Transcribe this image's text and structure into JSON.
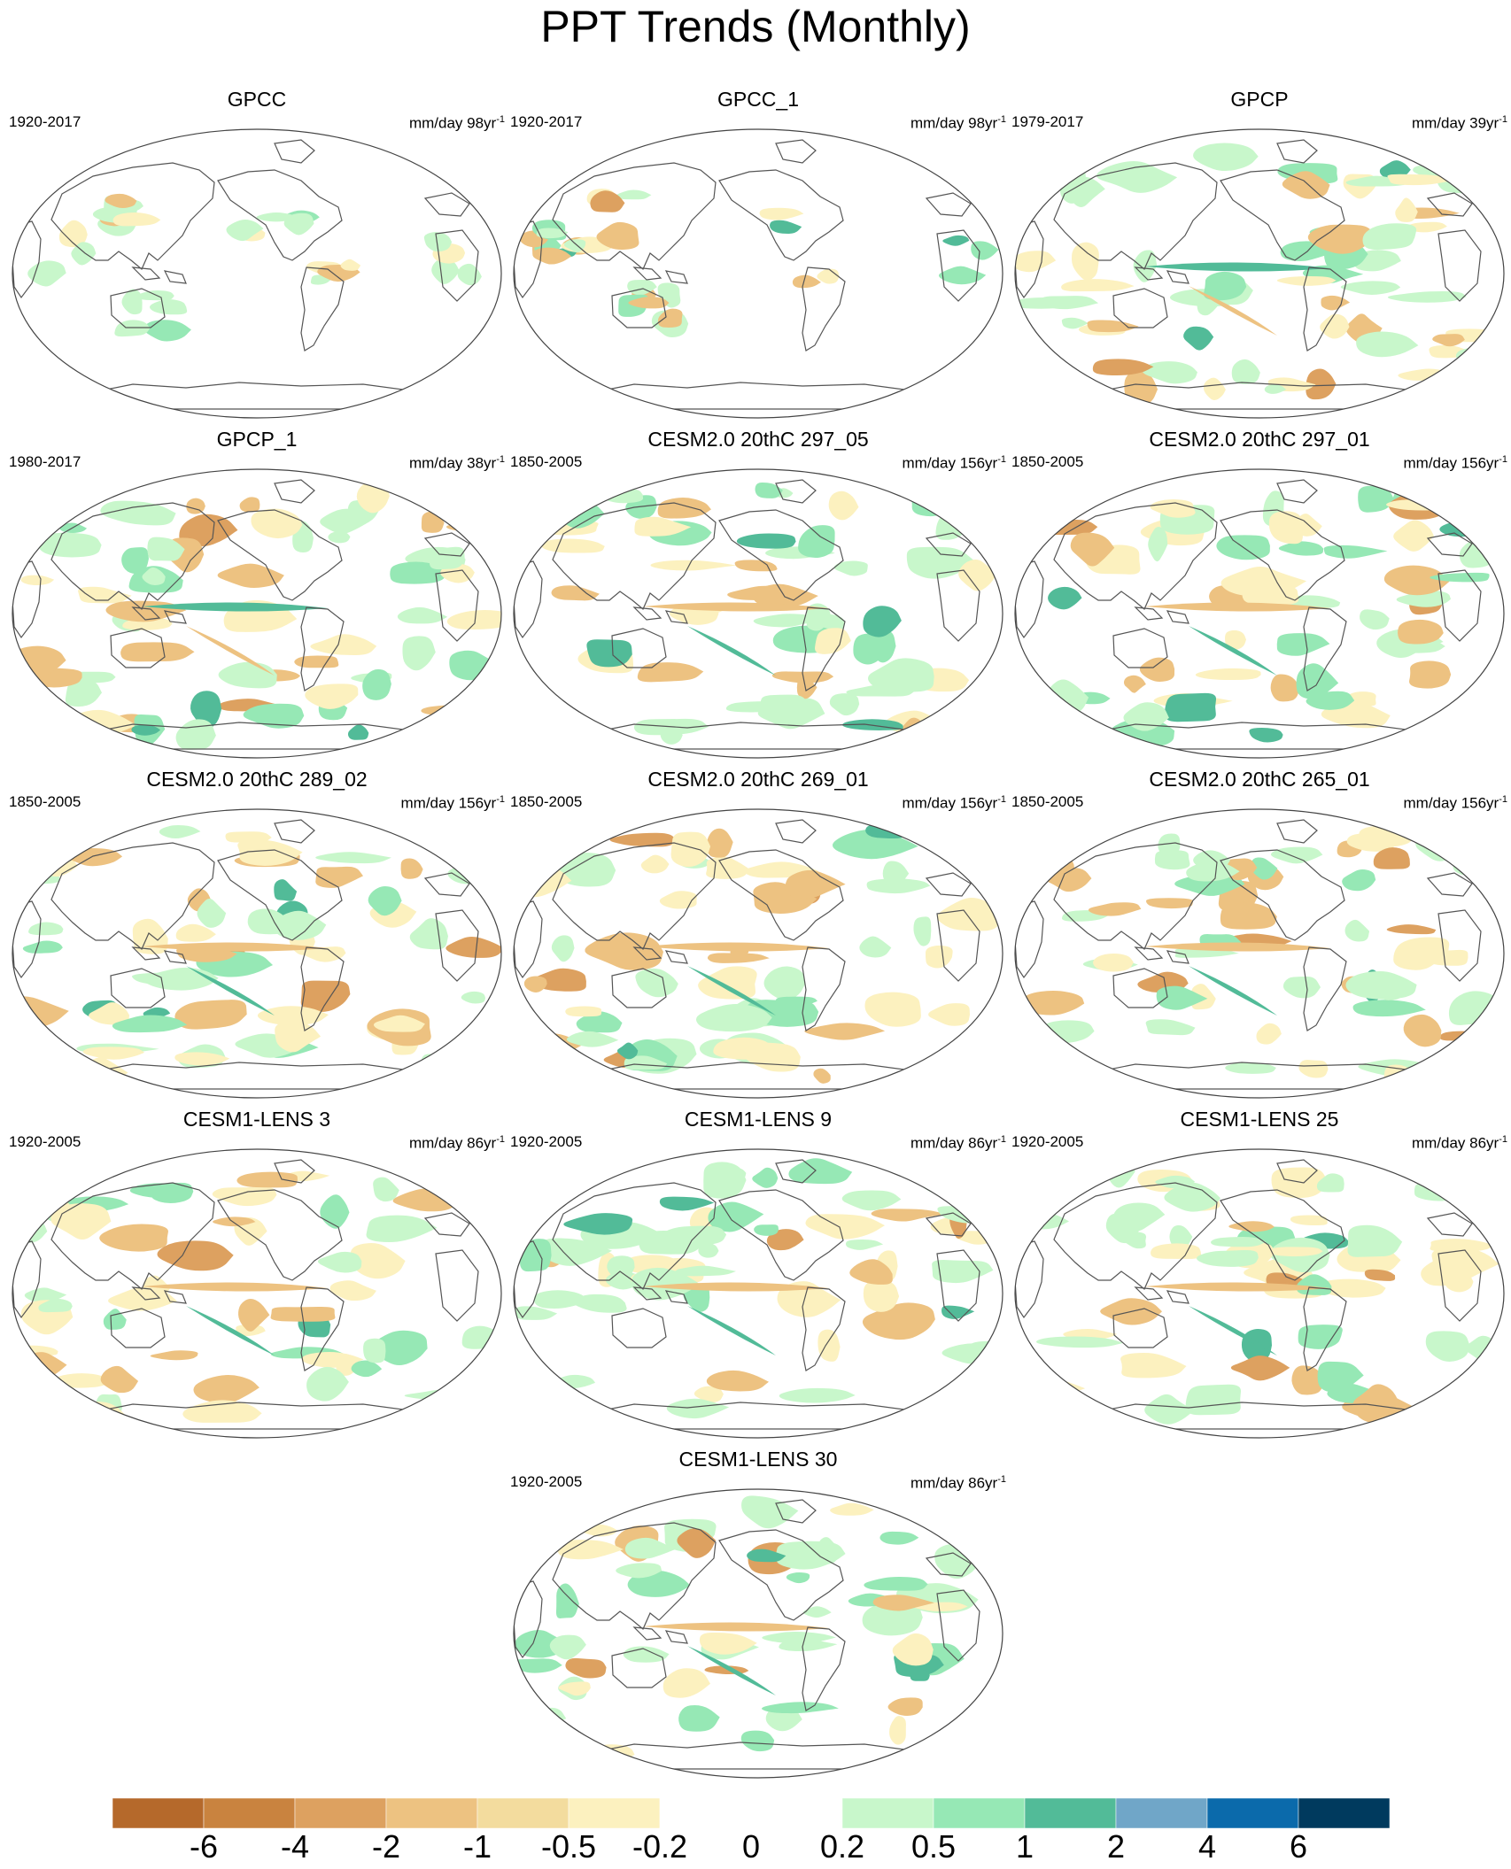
{
  "title": "PPT Trends (Monthly)",
  "panels": [
    {
      "title": "GPCC",
      "period": "1920-2017",
      "units": "mm/day 98yr",
      "sup": "-1"
    },
    {
      "title": "GPCC_1",
      "period": "1920-2017",
      "units": "mm/day 98yr",
      "sup": "-1"
    },
    {
      "title": "GPCP",
      "period": "1979-2017",
      "units": "mm/day 39yr",
      "sup": "-1"
    },
    {
      "title": "GPCP_1",
      "period": "1980-2017",
      "units": "mm/day 38yr",
      "sup": "-1"
    },
    {
      "title": "CESM2.0 20thC 297_05",
      "period": "1850-2005",
      "units": "mm/day 156yr",
      "sup": "-1"
    },
    {
      "title": "CESM2.0 20thC 297_01",
      "period": "1850-2005",
      "units": "mm/day 156yr",
      "sup": "-1"
    },
    {
      "title": "CESM2.0 20thC 289_02",
      "period": "1850-2005",
      "units": "mm/day 156yr",
      "sup": "-1"
    },
    {
      "title": "CESM2.0 20thC 269_01",
      "period": "1850-2005",
      "units": "mm/day 156yr",
      "sup": "-1"
    },
    {
      "title": "CESM2.0 20thC 265_01",
      "period": "1850-2005",
      "units": "mm/day 156yr",
      "sup": "-1"
    },
    {
      "title": "CESM1-LENS 3",
      "period": "1920-2005",
      "units": "mm/day 86yr",
      "sup": "-1"
    },
    {
      "title": "CESM1-LENS 9",
      "period": "1920-2005",
      "units": "mm/day 86yr",
      "sup": "-1"
    },
    {
      "title": "CESM1-LENS 25",
      "period": "1920-2005",
      "units": "mm/day 86yr",
      "sup": "-1"
    },
    {
      "title": "CESM1-LENS 30",
      "period": "1920-2005",
      "units": "mm/day 86yr",
      "sup": "-1"
    }
  ],
  "colorbar": {
    "labels": [
      "-6",
      "-4",
      "-2",
      "-1",
      "-0.5",
      "-0.2",
      "0",
      "0.2",
      "0.5",
      "1",
      "2",
      "4",
      "6"
    ],
    "colors": [
      "#b5692b",
      "#c9833f",
      "#dda160",
      "#edc281",
      "#f3dc9e",
      "#fcf1bf",
      "#ffffff",
      "#ffffff",
      "#c8f7cb",
      "#96e8b5",
      "#52bb98",
      "#70a6c8",
      "#0b6aab",
      "#003a5e"
    ]
  },
  "palette": {
    "land_outline": "#555555",
    "brown_strong": "#dda160",
    "brown_medium": "#edc281",
    "tan_light": "#fcf1bf",
    "green_light": "#c8f7cb",
    "green_medium": "#96e8b5",
    "teal_strong": "#52bb98"
  }
}
